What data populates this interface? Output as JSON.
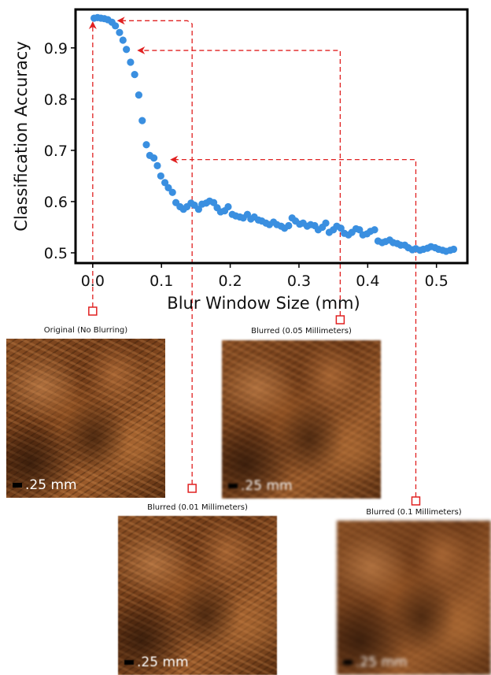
{
  "chart_data": {
    "type": "scatter",
    "xlabel": "Blur Window Size (mm)",
    "ylabel": "Classification Accuracy",
    "xlim": [
      -0.025,
      0.545
    ],
    "ylim": [
      0.48,
      0.975
    ],
    "xticks": [
      "0.0",
      "0.1",
      "0.2",
      "0.3",
      "0.4",
      "0.5"
    ],
    "yticks": [
      "0.5",
      "0.6",
      "0.7",
      "0.8",
      "0.9"
    ],
    "marker_color": "#3a8fe0",
    "callout_color": "#e02020",
    "series": [
      {
        "x": [
          0.002,
          0.007,
          0.012,
          0.017,
          0.022,
          0.028,
          0.033,
          0.039,
          0.044,
          0.049,
          0.055,
          0.061,
          0.067,
          0.072,
          0.078,
          0.083,
          0.089,
          0.094,
          0.099,
          0.105,
          0.11,
          0.116,
          0.121,
          0.127,
          0.132,
          0.137,
          0.143,
          0.148,
          0.154,
          0.159,
          0.165,
          0.17,
          0.176,
          0.181,
          0.186,
          0.192,
          0.197,
          0.203,
          0.208,
          0.214,
          0.219,
          0.225,
          0.23,
          0.235,
          0.241,
          0.246,
          0.252,
          0.257,
          0.263,
          0.268,
          0.274,
          0.279,
          0.285,
          0.29,
          0.295,
          0.301,
          0.306,
          0.312,
          0.317,
          0.323,
          0.328,
          0.334,
          0.339,
          0.344,
          0.35,
          0.355,
          0.361,
          0.366,
          0.372,
          0.377,
          0.383,
          0.388,
          0.393,
          0.399,
          0.404,
          0.41,
          0.415,
          0.421,
          0.426,
          0.432,
          0.437,
          0.443,
          0.448,
          0.454,
          0.459,
          0.465,
          0.47,
          0.476,
          0.481,
          0.487,
          0.492,
          0.498,
          0.503,
          0.509,
          0.514,
          0.52,
          0.525
        ],
        "y": [
          0.958,
          0.959,
          0.958,
          0.957,
          0.955,
          0.95,
          0.943,
          0.93,
          0.915,
          0.897,
          0.872,
          0.848,
          0.808,
          0.758,
          0.711,
          0.69,
          0.685,
          0.67,
          0.65,
          0.637,
          0.627,
          0.618,
          0.598,
          0.59,
          0.585,
          0.59,
          0.597,
          0.593,
          0.585,
          0.595,
          0.597,
          0.601,
          0.598,
          0.588,
          0.58,
          0.582,
          0.59,
          0.575,
          0.572,
          0.57,
          0.568,
          0.575,
          0.566,
          0.57,
          0.564,
          0.562,
          0.558,
          0.555,
          0.56,
          0.555,
          0.552,
          0.548,
          0.553,
          0.568,
          0.562,
          0.556,
          0.558,
          0.552,
          0.555,
          0.553,
          0.545,
          0.55,
          0.558,
          0.54,
          0.545,
          0.552,
          0.548,
          0.538,
          0.535,
          0.54,
          0.547,
          0.545,
          0.535,
          0.537,
          0.542,
          0.545,
          0.523,
          0.52,
          0.522,
          0.525,
          0.52,
          0.518,
          0.515,
          0.515,
          0.51,
          0.506,
          0.508,
          0.505,
          0.507,
          0.509,
          0.512,
          0.51,
          0.507,
          0.505,
          0.503,
          0.505,
          0.507
        ]
      }
    ],
    "callouts": [
      {
        "from": [
          0.0,
          0.958
        ],
        "to": [
          0.0,
          0.958
        ]
      },
      {
        "from": [
          0.14,
          0.953
        ],
        "to": [
          0.033,
          0.953
        ]
      },
      {
        "from": [
          0.36,
          0.895
        ],
        "to": [
          0.06,
          0.895
        ]
      },
      {
        "from": [
          0.47,
          0.682
        ],
        "to": [
          0.108,
          0.682
        ]
      }
    ]
  },
  "panels": [
    {
      "id": "original",
      "title": "Original (No Blurring)",
      "scale": ".25 mm"
    },
    {
      "id": "blur-005",
      "title": "Blurred (0.05 Millimeters)",
      "scale": ".25 mm"
    },
    {
      "id": "blur-001",
      "title": "Blurred (0.01 Millimeters)",
      "scale": ".25 mm"
    },
    {
      "id": "blur-01",
      "title": "Blurred (0.1 Millimeters)",
      "scale": ".25 mm"
    }
  ]
}
